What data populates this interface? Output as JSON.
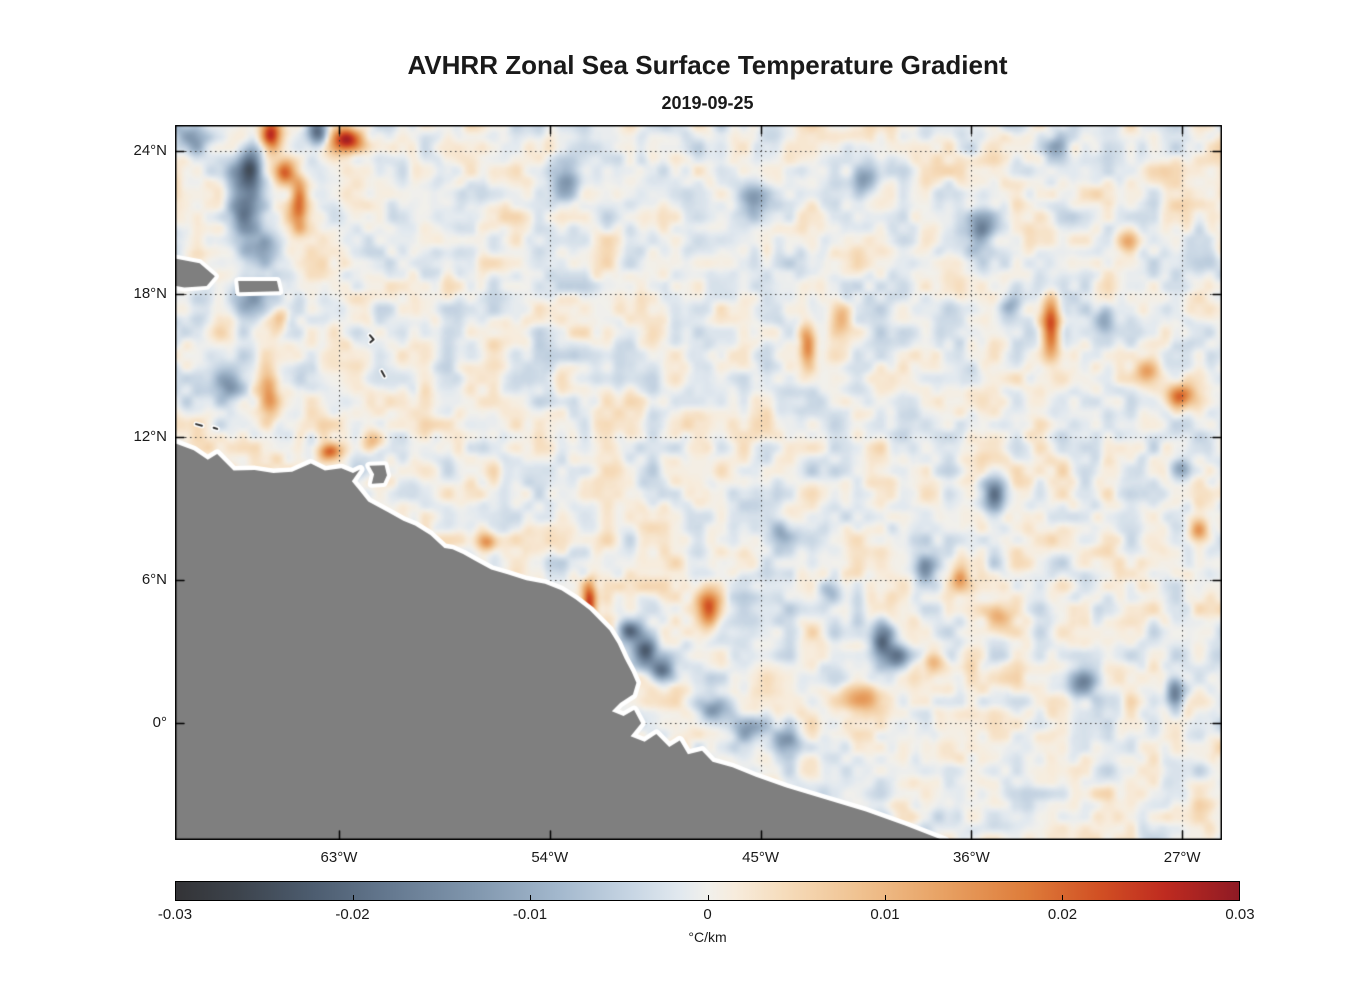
{
  "chart_data": {
    "type": "heatmap",
    "title": "AVHRR Zonal Sea Surface Temperature Gradient",
    "subtitle": "2019-09-25",
    "x_axis": {
      "ticks": [
        {
          "label": "63°W",
          "lon": -63
        },
        {
          "label": "54°W",
          "lon": -54
        },
        {
          "label": "45°W",
          "lon": -45
        },
        {
          "label": "36°W",
          "lon": -36
        },
        {
          "label": "27°W",
          "lon": -27
        }
      ],
      "range": [
        -70,
        -25.3
      ]
    },
    "y_axis": {
      "ticks": [
        {
          "label": "24°N",
          "lat": 24
        },
        {
          "label": "18°N",
          "lat": 18
        },
        {
          "label": "12°N",
          "lat": 12
        },
        {
          "label": "6°N",
          "lat": 6
        },
        {
          "label": "0°",
          "lat": 0
        }
      ],
      "range": [
        -4.9,
        25.1
      ]
    },
    "colorbar": {
      "min": -0.03,
      "max": 0.03,
      "tick_labels": [
        "-0.03",
        "-0.02",
        "-0.01",
        "0",
        "0.01",
        "0.02",
        "0.03"
      ],
      "tick_values": [
        -0.03,
        -0.02,
        -0.01,
        0,
        0.01,
        0.02,
        0.03
      ],
      "unit": "°C/km",
      "stops": [
        [
          0.0,
          "#333336"
        ],
        [
          0.06,
          "#3d444d"
        ],
        [
          0.13,
          "#4d5d70"
        ],
        [
          0.2,
          "#64788f"
        ],
        [
          0.28,
          "#8096ad"
        ],
        [
          0.36,
          "#a3b8cd"
        ],
        [
          0.43,
          "#c8d6e4"
        ],
        [
          0.475,
          "#e2e9ef"
        ],
        [
          0.5,
          "#f1f0ec"
        ],
        [
          0.525,
          "#f7ecdd"
        ],
        [
          0.57,
          "#f6ddbd"
        ],
        [
          0.64,
          "#f0c392"
        ],
        [
          0.72,
          "#e8a264"
        ],
        [
          0.8,
          "#de7c3a"
        ],
        [
          0.87,
          "#d14f23"
        ],
        [
          0.93,
          "#bf2b20"
        ],
        [
          1.0,
          "#8f1a24"
        ]
      ]
    },
    "grid": {
      "style": "dotted",
      "color": "#3a3a3a"
    },
    "land": {
      "color": "#7f7f7f",
      "halo_color": "#ffffff",
      "coast_polyline": [
        [
          -70,
          11.75
        ],
        [
          -69.2,
          11.45
        ],
        [
          -68.6,
          11.05
        ],
        [
          -68.2,
          11.3
        ],
        [
          -67.5,
          10.6
        ],
        [
          -66.6,
          10.62
        ],
        [
          -65.8,
          10.5
        ],
        [
          -65.0,
          10.55
        ],
        [
          -64.2,
          10.9
        ],
        [
          -63.6,
          10.6
        ],
        [
          -62.9,
          10.7
        ],
        [
          -62.4,
          10.5
        ],
        [
          -62.1,
          10.65
        ],
        [
          -62.45,
          10.15
        ],
        [
          -62.15,
          9.8
        ],
        [
          -61.75,
          9.3
        ],
        [
          -60.9,
          8.85
        ],
        [
          -60.25,
          8.5
        ],
        [
          -59.75,
          8.3
        ],
        [
          -59.1,
          7.9
        ],
        [
          -58.5,
          7.35
        ],
        [
          -58.15,
          7.3
        ],
        [
          -57.7,
          7.1
        ],
        [
          -57.15,
          6.8
        ],
        [
          -56.5,
          6.45
        ],
        [
          -55.8,
          6.25
        ],
        [
          -55.0,
          6.0
        ],
        [
          -54.2,
          5.85
        ],
        [
          -53.5,
          5.58
        ],
        [
          -52.9,
          5.2
        ],
        [
          -52.3,
          4.75
        ],
        [
          -51.85,
          4.3
        ],
        [
          -51.45,
          3.9
        ],
        [
          -51.1,
          3.35
        ],
        [
          -50.8,
          2.7
        ],
        [
          -50.5,
          2.15
        ],
        [
          -50.3,
          1.7
        ],
        [
          -50.45,
          1.2
        ],
        [
          -51.0,
          0.85
        ],
        [
          -51.35,
          0.5
        ],
        [
          -50.85,
          0.3
        ],
        [
          -50.4,
          0.55
        ],
        [
          -50.1,
          0.0
        ],
        [
          -50.55,
          -0.55
        ],
        [
          -49.95,
          -0.78
        ],
        [
          -49.45,
          -0.45
        ],
        [
          -48.9,
          -1.0
        ],
        [
          -48.45,
          -0.72
        ],
        [
          -48.1,
          -1.3
        ],
        [
          -47.5,
          -1.15
        ],
        [
          -47.05,
          -1.62
        ],
        [
          -46.2,
          -1.85
        ],
        [
          -45.2,
          -2.25
        ],
        [
          -43.9,
          -2.7
        ],
        [
          -42.2,
          -3.2
        ],
        [
          -40.5,
          -3.7
        ],
        [
          -38.8,
          -4.3
        ],
        [
          -37.1,
          -4.95
        ]
      ],
      "islands": [
        [
          [
            -61.7,
            10.8
          ],
          [
            -61.05,
            10.82
          ],
          [
            -60.95,
            10.4
          ],
          [
            -61.1,
            10.08
          ],
          [
            -61.6,
            10.05
          ],
          [
            -61.5,
            10.45
          ]
        ],
        [
          [
            -70.3,
            19.55
          ],
          [
            -68.95,
            19.3
          ],
          [
            -68.3,
            18.75
          ],
          [
            -68.65,
            18.35
          ],
          [
            -69.6,
            18.28
          ],
          [
            -70.3,
            18.42
          ]
        ],
        [
          [
            -67.3,
            18.55
          ],
          [
            -65.65,
            18.55
          ],
          [
            -65.55,
            18.12
          ],
          [
            -67.25,
            18.08
          ]
        ]
      ],
      "islets": [
        [
          [
            -61.68,
            16.28
          ],
          [
            -61.52,
            16.1
          ],
          [
            -61.66,
            15.98
          ]
        ],
        [
          [
            -61.18,
            14.78
          ],
          [
            -61.05,
            14.55
          ]
        ],
        [
          [
            -69.1,
            12.55
          ],
          [
            -68.85,
            12.48
          ]
        ],
        [
          [
            -68.35,
            12.4
          ],
          [
            -68.2,
            12.35
          ]
        ]
      ]
    },
    "noise": {
      "seed1": 101,
      "seed2": 202,
      "octave1_amp": 0.0042,
      "octave2_amp": 0.0026
    },
    "features_lon_lat_amp_sigmaLon_sigmaLat": [
      [
        -65.9,
        24.7,
        0.028,
        0.45,
        0.8
      ],
      [
        -62.6,
        24.5,
        0.027,
        0.7,
        0.5
      ],
      [
        -63.9,
        24.85,
        -0.022,
        0.45,
        0.6
      ],
      [
        -69.3,
        24.6,
        -0.012,
        0.7,
        0.7
      ],
      [
        -67.0,
        22.0,
        -0.018,
        0.8,
        1.4
      ],
      [
        -66.3,
        19.8,
        -0.014,
        0.9,
        0.9
      ],
      [
        -66.8,
        17.8,
        -0.012,
        0.8,
        0.8
      ],
      [
        -64.7,
        21.8,
        0.021,
        0.35,
        1.1
      ],
      [
        -65.3,
        23.1,
        0.018,
        0.4,
        0.5
      ],
      [
        -66.8,
        23.5,
        -0.016,
        0.5,
        0.8
      ],
      [
        -66.0,
        13.6,
        0.018,
        0.45,
        0.9
      ],
      [
        -67.6,
        14.2,
        -0.012,
        0.7,
        0.7
      ],
      [
        -63.4,
        11.4,
        0.02,
        0.5,
        0.35
      ],
      [
        -61.5,
        11.9,
        0.012,
        0.5,
        0.4
      ],
      [
        -65.5,
        17.0,
        0.012,
        0.4,
        0.5
      ],
      [
        -53.3,
        22.8,
        -0.01,
        0.6,
        0.8
      ],
      [
        -56.6,
        7.6,
        0.018,
        0.45,
        0.4
      ],
      [
        -52.3,
        5.0,
        0.026,
        0.3,
        0.9
      ],
      [
        -47.2,
        4.9,
        0.022,
        0.55,
        0.8
      ],
      [
        -50.6,
        3.9,
        -0.02,
        0.5,
        0.5
      ],
      [
        -49.9,
        3.0,
        -0.025,
        0.5,
        0.6
      ],
      [
        -49.2,
        2.2,
        -0.022,
        0.5,
        0.5
      ],
      [
        -47.0,
        0.5,
        -0.013,
        0.7,
        0.5
      ],
      [
        -45.5,
        -0.2,
        -0.012,
        0.8,
        0.5
      ],
      [
        -43.9,
        -0.8,
        -0.01,
        0.7,
        0.5
      ],
      [
        -40.7,
        1.0,
        0.012,
        0.8,
        0.5
      ],
      [
        -39.8,
        3.6,
        -0.02,
        0.5,
        0.7
      ],
      [
        -39.2,
        2.8,
        -0.016,
        0.5,
        0.5
      ],
      [
        -37.6,
        2.6,
        0.015,
        0.5,
        0.5
      ],
      [
        -35.0,
        9.6,
        -0.02,
        0.55,
        0.7
      ],
      [
        -34.9,
        4.5,
        0.015,
        0.6,
        0.6
      ],
      [
        -32.6,
        16.6,
        0.026,
        0.4,
        1.2
      ],
      [
        -35.6,
        20.7,
        -0.015,
        0.6,
        0.9
      ],
      [
        -43.0,
        15.8,
        0.019,
        0.35,
        0.9
      ],
      [
        -45.4,
        22.0,
        -0.012,
        0.6,
        0.7
      ],
      [
        -40.5,
        22.8,
        -0.012,
        0.5,
        0.6
      ],
      [
        -29.3,
        20.2,
        0.012,
        0.45,
        0.5
      ],
      [
        -32.4,
        24.2,
        -0.012,
        0.55,
        0.5
      ],
      [
        -34.3,
        17.5,
        -0.012,
        0.5,
        0.5
      ],
      [
        -30.3,
        17.0,
        -0.013,
        0.45,
        0.6
      ],
      [
        -41.5,
        17.0,
        0.01,
        0.4,
        0.6
      ],
      [
        -44.0,
        8.0,
        -0.01,
        0.6,
        0.6
      ],
      [
        -42.0,
        5.5,
        -0.01,
        0.5,
        0.5
      ],
      [
        -38.0,
        6.5,
        -0.012,
        0.5,
        0.6
      ],
      [
        -36.5,
        6.0,
        0.012,
        0.4,
        0.5
      ],
      [
        -27.1,
        13.7,
        0.022,
        0.6,
        0.5
      ],
      [
        -28.5,
        14.8,
        0.013,
        0.5,
        0.5
      ],
      [
        -27.1,
        10.7,
        -0.014,
        0.45,
        0.5
      ],
      [
        -26.3,
        8.1,
        0.015,
        0.45,
        0.45
      ],
      [
        -31.2,
        1.7,
        -0.017,
        0.6,
        0.6
      ],
      [
        -27.3,
        1.3,
        -0.022,
        0.4,
        0.7
      ]
    ]
  }
}
